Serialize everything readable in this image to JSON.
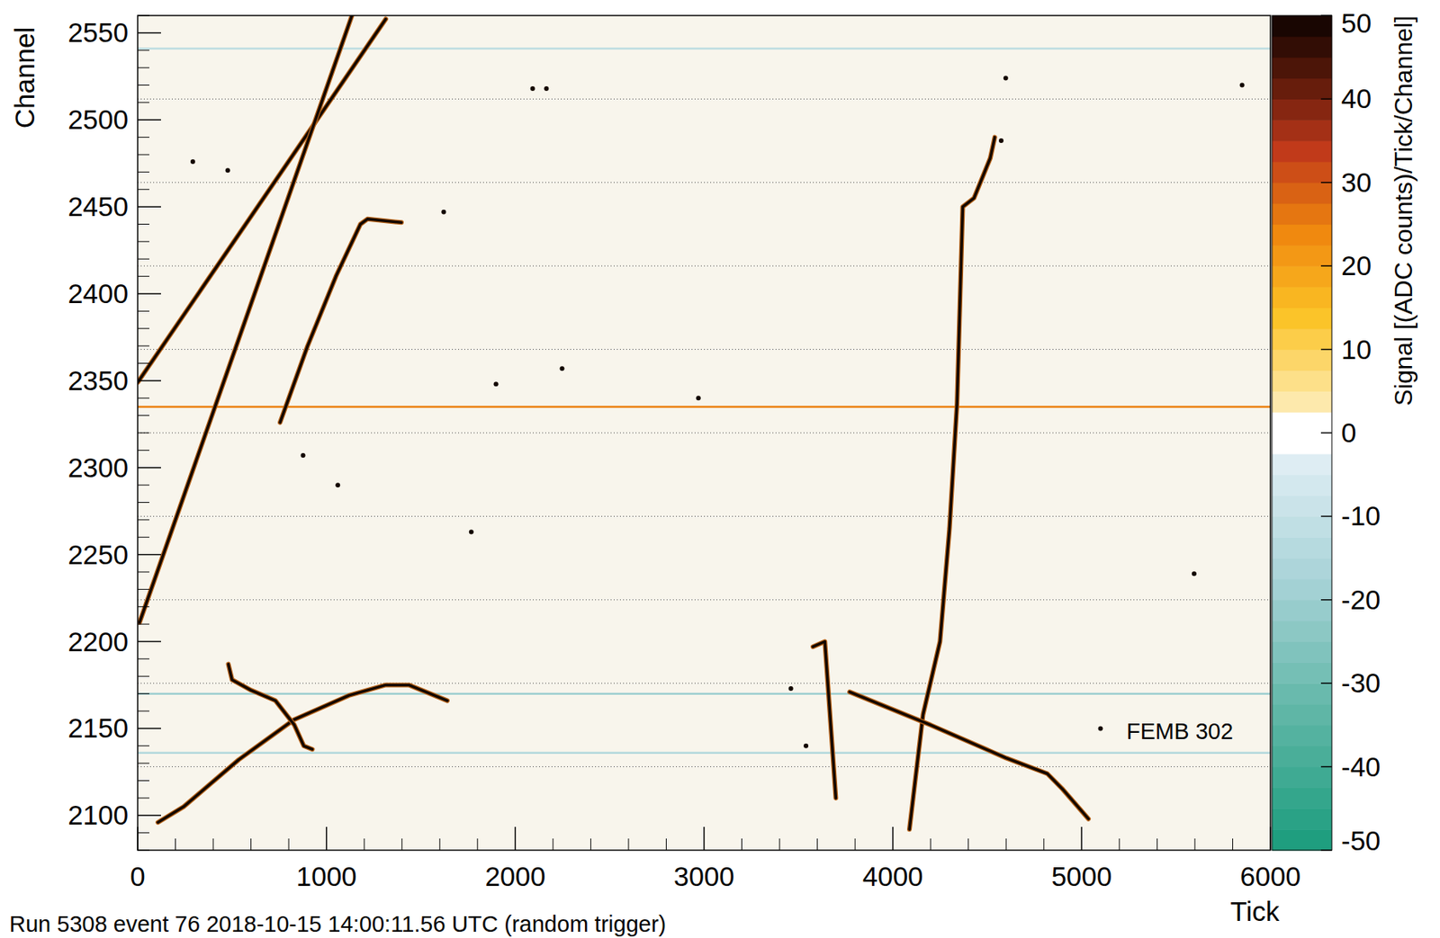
{
  "chart_data": {
    "type": "event_display",
    "footer": "Run 5308 event 76 2018-10-15 14:00:11.56 UTC (random trigger)",
    "x_label": "Tick",
    "y_label": "Channel",
    "xlim": [
      0,
      6000
    ],
    "xticks": [
      0,
      1000,
      2000,
      3000,
      4000,
      5000,
      6000
    ],
    "ylim": [
      2080,
      2560
    ],
    "yticks": [
      2100,
      2150,
      2200,
      2250,
      2300,
      2350,
      2400,
      2450,
      2500,
      2550
    ],
    "color": "#140800",
    "boundaries": [
      2128,
      2176,
      2224,
      2272,
      2320,
      2368,
      2416,
      2464,
      2512
    ],
    "channel_lines": [
      {
        "channel": 2335,
        "value": 25
      },
      {
        "channel": 2170,
        "value": -20
      },
      {
        "channel": 2136,
        "value": -15
      },
      {
        "channel": 2541,
        "value": -12
      }
    ],
    "tracks": [
      {
        "x": [
          0,
          1314
        ],
        "y": [
          2349,
          2558
        ]
      },
      {
        "x": [
          10,
          1135
        ],
        "y": [
          2211,
          2560
        ]
      },
      {
        "x": [
          754,
          900,
          1050,
          1180,
          1217,
          1397
        ],
        "y": [
          2326,
          2370,
          2410,
          2440,
          2443,
          2441
        ]
      },
      {
        "x": [
          4540,
          4516,
          4430,
          4370,
          4340,
          4300,
          4250,
          4160,
          4088
        ],
        "y": [
          2490,
          2478,
          2455,
          2450,
          2337,
          2265,
          2200,
          2158,
          2092
        ]
      },
      {
        "x": [
          3577,
          3640,
          3698
        ],
        "y": [
          2197,
          2200,
          2110
        ]
      },
      {
        "x": [
          3771,
          4200,
          4600,
          4818,
          4900,
          5036
        ],
        "y": [
          2171,
          2152,
          2133,
          2124,
          2115,
          2098
        ]
      },
      {
        "x": [
          107,
          243,
          535,
          827,
          1119,
          1314,
          1436,
          1640
        ],
        "y": [
          2096,
          2105,
          2132,
          2155,
          2169,
          2175,
          2175,
          2166
        ]
      },
      {
        "x": [
          480,
          500,
          600,
          730,
          830,
          880,
          925
        ],
        "y": [
          2187,
          2178,
          2172,
          2166,
          2152,
          2140,
          2138
        ]
      }
    ],
    "blips": {
      "x": [
        1621,
        1898,
        2248,
        2092,
        2165,
        876,
        477,
        292,
        1767,
        5596,
        4574,
        4598,
        3540,
        3460,
        1060,
        2970,
        5100,
        5850
      ],
      "y": [
        2447,
        2348,
        2357,
        2518,
        2518,
        2307,
        2471,
        2476,
        2263,
        2239,
        2488,
        2524,
        2140,
        2173,
        2290,
        2340,
        2150,
        2520
      ]
    },
    "annotations": [
      {
        "text": "FEMB 302",
        "x": 5520,
        "y": 2144
      }
    ],
    "colorbar": {
      "label": "Signal [(ADC counts)/Tick/Channel]",
      "range": [
        -50,
        50
      ],
      "ticks": [
        -50,
        -40,
        -30,
        -20,
        -10,
        0,
        10,
        20,
        30,
        40,
        50
      ]
    }
  }
}
